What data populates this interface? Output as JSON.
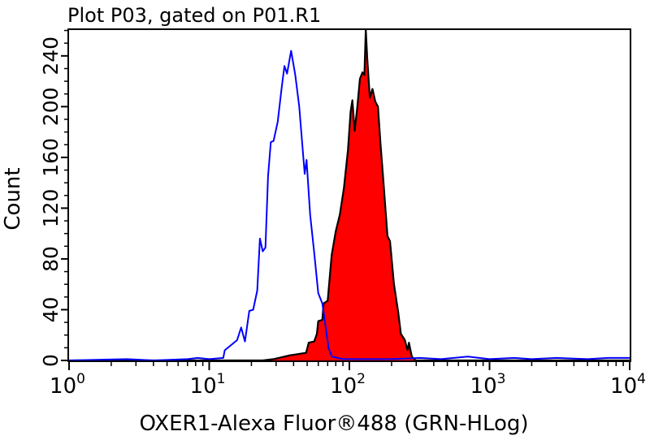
{
  "chart_data": {
    "type": "line",
    "title": "Plot P03, gated on P01.R1",
    "xlabel": "OXER1-Alexa Fluor®488 (GRN-HLog)",
    "ylabel": "Count",
    "x_scale": "log",
    "xlim": [
      1,
      10000
    ],
    "ylim": [
      0,
      261
    ],
    "x_ticks": [
      {
        "base": "10",
        "exp": "0"
      },
      {
        "base": "10",
        "exp": "1"
      },
      {
        "base": "10",
        "exp": "2"
      },
      {
        "base": "10",
        "exp": "3"
      },
      {
        "base": "10",
        "exp": "4"
      }
    ],
    "y_ticks": [
      "0",
      "40",
      "80",
      "120",
      "160",
      "200",
      "240"
    ],
    "grid": false,
    "series": [
      {
        "role": "control (unfilled)",
        "color": "#0000ff",
        "filled": false,
        "points": [
          [
            1,
            0
          ],
          [
            2.6,
            1
          ],
          [
            4,
            0
          ],
          [
            7,
            1
          ],
          [
            8.3,
            2
          ],
          [
            10,
            1
          ],
          [
            12.6,
            2
          ],
          [
            12.9,
            8
          ],
          [
            15.8,
            16
          ],
          [
            16.9,
            26
          ],
          [
            18.0,
            15
          ],
          [
            19.3,
            39
          ],
          [
            20.6,
            40
          ],
          [
            22.0,
            55
          ],
          [
            23.0,
            96
          ],
          [
            24.1,
            86
          ],
          [
            25.2,
            89
          ],
          [
            26.3,
            145
          ],
          [
            27.5,
            172
          ],
          [
            28.8,
            173
          ],
          [
            30.8,
            188
          ],
          [
            32.9,
            215
          ],
          [
            34.4,
            232
          ],
          [
            35.9,
            226
          ],
          [
            38.4,
            244
          ],
          [
            41.1,
            225
          ],
          [
            43.9,
            200
          ],
          [
            45.9,
            173
          ],
          [
            48.0,
            147
          ],
          [
            49.5,
            158
          ],
          [
            52.5,
            115
          ],
          [
            56.1,
            85
          ],
          [
            60.0,
            53
          ],
          [
            64.1,
            45
          ],
          [
            67.0,
            30
          ],
          [
            71,
            10
          ],
          [
            75,
            3
          ],
          [
            90,
            1
          ],
          [
            200,
            1
          ],
          [
            320,
            2
          ],
          [
            450,
            1
          ],
          [
            700,
            3
          ],
          [
            1000,
            1
          ],
          [
            1500,
            2
          ],
          [
            2000,
            1
          ],
          [
            3000,
            2
          ],
          [
            5000,
            1
          ],
          [
            7000,
            2
          ],
          [
            10000,
            2
          ]
        ]
      },
      {
        "role": "OXER1 stained (filled)",
        "color": "#ff0000",
        "stroke": "#000000",
        "filled": true,
        "points": [
          [
            1,
            0
          ],
          [
            24.1,
            0
          ],
          [
            28.8,
            1
          ],
          [
            37.6,
            4
          ],
          [
            43.0,
            5
          ],
          [
            49.1,
            6
          ],
          [
            51.3,
            14
          ],
          [
            56.1,
            15
          ],
          [
            58.6,
            21
          ],
          [
            60.0,
            31
          ],
          [
            64.1,
            32
          ],
          [
            65.5,
            45
          ],
          [
            70.0,
            47
          ],
          [
            74.8,
            83
          ],
          [
            80.0,
            102
          ],
          [
            85.5,
            115
          ],
          [
            91.4,
            136
          ],
          [
            97.7,
            166
          ],
          [
            102,
            196
          ],
          [
            105,
            205
          ],
          [
            109,
            181
          ],
          [
            114,
            200
          ],
          [
            119,
            222
          ],
          [
            124,
            227
          ],
          [
            128,
            225
          ],
          [
            131,
            261
          ],
          [
            134,
            239
          ],
          [
            140,
            207
          ],
          [
            146,
            214
          ],
          [
            153,
            204
          ],
          [
            160,
            200
          ],
          [
            167,
            170
          ],
          [
            175,
            141
          ],
          [
            187,
            98
          ],
          [
            195,
            94
          ],
          [
            208,
            60
          ],
          [
            223,
            38
          ],
          [
            233,
            21
          ],
          [
            249,
            16
          ],
          [
            260,
            8
          ],
          [
            266,
            14
          ],
          [
            279,
            3
          ],
          [
            297,
            0
          ],
          [
            10000,
            0
          ]
        ]
      }
    ]
  }
}
